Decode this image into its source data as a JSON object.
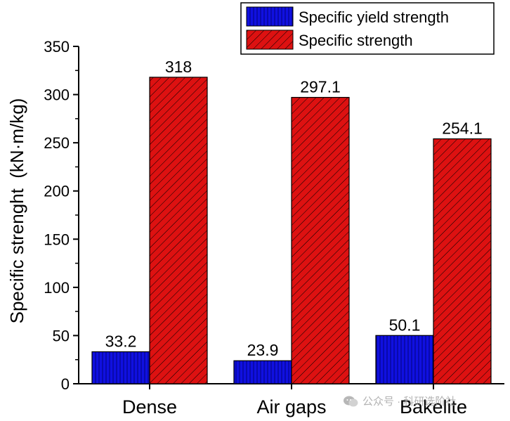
{
  "chart_data": {
    "type": "bar",
    "title": "",
    "xlabel": "",
    "ylabel": "Specific strenght  (kN·m/kg)",
    "categories": [
      "Dense",
      "Air gaps",
      "Bakelite"
    ],
    "series": [
      {
        "name": "Specific yield strength",
        "values": [
          33.2,
          23.9,
          50.1
        ],
        "labels": [
          "33.2",
          "23.9",
          "50.1"
        ],
        "color": "#1010e0",
        "pattern": "vertical-lines"
      },
      {
        "name": "Specific strength",
        "values": [
          318,
          297.1,
          254.1
        ],
        "labels": [
          "318",
          "297.1",
          "254.1"
        ],
        "color": "#dd1111",
        "pattern": "diagonal-hatch"
      }
    ],
    "ylim": [
      0,
      350
    ],
    "yticks": [
      0,
      50,
      100,
      150,
      200,
      250,
      300,
      350
    ],
    "ytick_labels": [
      "0",
      "50",
      "100",
      "150",
      "200",
      "250",
      "300",
      "350"
    ],
    "legend_position": "top-right",
    "grid": false
  },
  "watermark": {
    "text": "公众号 · 科研选阶社",
    "icon": "wechat-icon"
  }
}
